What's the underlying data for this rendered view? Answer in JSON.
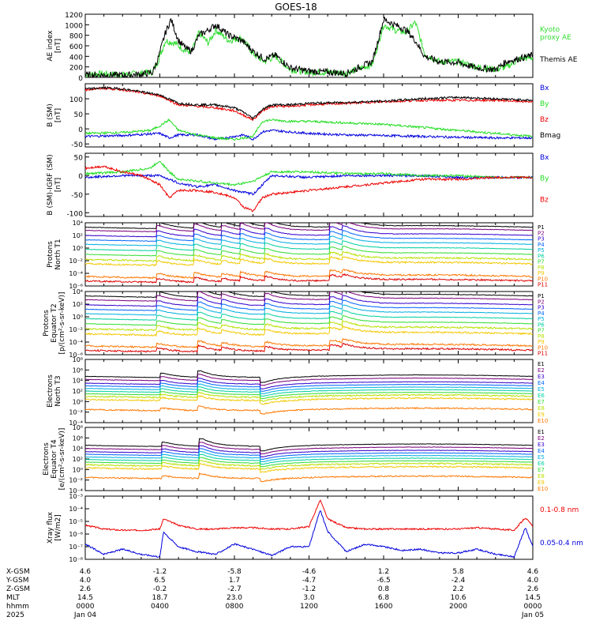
{
  "title": "GOES-18",
  "colors": {
    "black": "#000000",
    "red": "#ee0000",
    "green": "#22dd22",
    "blue": "#0000dd",
    "kyoto": "#33dd33",
    "channel_ramp": [
      "#000000",
      "#7a007a",
      "#3300cc",
      "#0066ff",
      "#00b0e0",
      "#00d0a0",
      "#33dd33",
      "#b8e000",
      "#f2c800",
      "#ff7700",
      "#dd0000"
    ]
  },
  "chart_data": [
    {
      "id": "ae",
      "type": "line",
      "ylabel": "AE index\n[nT]",
      "ylim": [
        0,
        1200
      ],
      "yticks": [
        0,
        200,
        400,
        600,
        800,
        1000,
        1200
      ],
      "series": [
        {
          "name": "Kyoto\nproxy AE",
          "color": "#33dd33",
          "x": [
            0,
            1.0,
            2.0,
            3.0,
            3.6,
            3.9,
            4.3,
            4.8,
            5.4,
            5.7,
            6.1,
            6.6,
            7.0,
            7.7,
            8.4,
            9.0,
            9.6,
            10.2,
            11.0,
            12.0,
            13.0,
            14.0,
            15.4,
            16.0,
            16.6,
            17.2,
            17.7,
            18.2,
            19.0,
            20.0,
            21.0,
            22.0,
            22.6,
            23.3,
            24.0
          ],
          "values": [
            60,
            70,
            50,
            80,
            100,
            300,
            700,
            650,
            500,
            480,
            850,
            650,
            900,
            700,
            750,
            450,
            300,
            400,
            150,
            100,
            100,
            80,
            250,
            1000,
            900,
            850,
            1050,
            450,
            300,
            300,
            200,
            150,
            200,
            350,
            380
          ]
        },
        {
          "name": "Themis AE",
          "color": "#000000",
          "x": [
            0,
            1.0,
            2.0,
            3.0,
            3.6,
            3.9,
            4.3,
            4.6,
            5.0,
            5.4,
            5.7,
            6.1,
            6.6,
            7.0,
            7.7,
            8.4,
            9.0,
            9.6,
            10.2,
            11.0,
            12.0,
            13.0,
            14.0,
            15.4,
            16.0,
            16.6,
            17.2,
            17.7,
            18.2,
            19.0,
            20.0,
            21.0,
            22.0,
            22.6,
            23.3,
            24.0
          ],
          "values": [
            40,
            50,
            40,
            60,
            90,
            350,
            850,
            1100,
            700,
            550,
            500,
            800,
            900,
            1000,
            800,
            700,
            500,
            350,
            420,
            180,
            120,
            100,
            80,
            300,
            1100,
            1000,
            900,
            700,
            400,
            300,
            280,
            180,
            150,
            300,
            360,
            420
          ]
        }
      ]
    },
    {
      "id": "bsm",
      "type": "line",
      "ylabel": "B (SM)\n[nT]",
      "ylim": [
        -60,
        150
      ],
      "yticks": [
        -50,
        0,
        50,
        100
      ],
      "series": [
        {
          "name": "Bx",
          "color": "#0000dd",
          "x": [
            0,
            2,
            4,
            4.5,
            5,
            6,
            7,
            8,
            8.5,
            9,
            9.5,
            10,
            11,
            12,
            14,
            16,
            18,
            20,
            22,
            24
          ],
          "values": [
            -25,
            -22,
            -15,
            -30,
            -20,
            -20,
            -35,
            -25,
            -20,
            -35,
            -10,
            -5,
            -10,
            -15,
            -20,
            -22,
            -25,
            -28,
            -30,
            -30
          ]
        },
        {
          "name": "By",
          "color": "#22dd22",
          "x": [
            0,
            2,
            3.5,
            4,
            4.5,
            5,
            6,
            7,
            8,
            9,
            9.5,
            10,
            11,
            12,
            14,
            16,
            18,
            20,
            22,
            24
          ],
          "values": [
            -15,
            -12,
            -5,
            10,
            30,
            -5,
            -20,
            -30,
            -35,
            -25,
            25,
            30,
            25,
            25,
            20,
            15,
            5,
            -5,
            -15,
            -25
          ]
        },
        {
          "name": "Bz",
          "color": "#ee0000",
          "x": [
            0,
            1,
            2,
            3,
            4,
            5,
            6,
            7,
            8,
            8.5,
            9,
            9.5,
            10,
            11,
            12,
            14,
            16,
            18,
            20,
            22,
            24
          ],
          "values": [
            130,
            135,
            130,
            120,
            110,
            80,
            75,
            70,
            60,
            45,
            30,
            60,
            75,
            75,
            80,
            85,
            90,
            95,
            95,
            95,
            90
          ]
        },
        {
          "name": "Bmag",
          "color": "#000000",
          "x": [
            0,
            1,
            2,
            3,
            4,
            5,
            6,
            7,
            8,
            8.5,
            9,
            9.5,
            10,
            11,
            12,
            14,
            16,
            18,
            20,
            22,
            24
          ],
          "values": [
            132,
            137,
            133,
            123,
            113,
            85,
            80,
            80,
            70,
            55,
            35,
            65,
            80,
            80,
            85,
            88,
            92,
            100,
            105,
            100,
            95
          ]
        }
      ]
    },
    {
      "id": "dbsm",
      "type": "line",
      "ylabel": "B (SM)-IGRF (SM)\n[nT]",
      "ylim": [
        -110,
        60
      ],
      "yticks": [
        -100,
        -50,
        0,
        50
      ],
      "series": [
        {
          "name": "Bx",
          "color": "#0000dd",
          "x": [
            0,
            2,
            4,
            5,
            6,
            7,
            8,
            9,
            10,
            12,
            14,
            16,
            18,
            20,
            22,
            24
          ],
          "values": [
            -5,
            0,
            0,
            -20,
            -30,
            -25,
            -40,
            -50,
            0,
            -5,
            0,
            0,
            0,
            -5,
            -5,
            -5
          ]
        },
        {
          "name": "By",
          "color": "#22dd22",
          "x": [
            0,
            2,
            3.5,
            4,
            4.5,
            5,
            6,
            7,
            8,
            9,
            10,
            12,
            14,
            16,
            18,
            20,
            22,
            24
          ],
          "values": [
            5,
            10,
            20,
            40,
            10,
            -10,
            -15,
            -20,
            -25,
            -15,
            10,
            10,
            5,
            5,
            0,
            0,
            -5,
            -5
          ]
        },
        {
          "name": "Bz",
          "color": "#ee0000",
          "x": [
            0,
            1,
            2,
            3,
            4,
            4.5,
            5,
            6,
            7,
            8,
            8.5,
            9,
            9.5,
            10,
            11,
            12,
            14,
            16,
            18,
            20,
            22,
            24
          ],
          "values": [
            20,
            25,
            10,
            0,
            -25,
            -60,
            -40,
            -40,
            -45,
            -60,
            -85,
            -95,
            -60,
            -50,
            -45,
            -40,
            -30,
            -20,
            -10,
            -10,
            -5,
            -5
          ]
        }
      ]
    },
    {
      "id": "p_north",
      "type": "line",
      "log": true,
      "ylabel": "Protons\nNorth T1",
      "ylim": [
        -6,
        4
      ],
      "ytick_exps": [
        -6,
        -4,
        -2,
        0,
        2,
        4
      ],
      "channels": [
        "P1",
        "P2",
        "P3",
        "P4",
        "P5",
        "P6",
        "P7",
        "P8",
        "P9",
        "P10",
        "P11"
      ],
      "levels": [
        3.3,
        2.8,
        2.0,
        1.3,
        0.6,
        -0.2,
        -1.0,
        -1.8,
        -2.5,
        -4.5,
        -5.2
      ],
      "event_x": [
        4.0,
        6.0,
        7.5,
        8.5,
        9.8,
        13.3,
        14.0
      ],
      "event_amp": [
        1.0,
        1.2,
        0.8,
        1.0,
        1.1,
        1.4,
        0.8
      ]
    },
    {
      "id": "p_equator",
      "type": "line",
      "log": true,
      "ylabel": "Protons\nEquator T2\n[p/(cm²-s-sr-keV)]",
      "ylim": [
        -6,
        4
      ],
      "ytick_exps": [
        -6,
        -4,
        -2,
        0,
        2,
        4
      ],
      "channels": [
        "P1",
        "P2",
        "P3",
        "P4",
        "P5",
        "P6",
        "P7",
        "P8",
        "P9",
        "P10",
        "P11"
      ],
      "levels": [
        3.3,
        2.7,
        1.9,
        1.2,
        0.5,
        -0.3,
        -1.1,
        -1.9,
        -2.7,
        -4.6,
        -5.3
      ],
      "event_x": [
        4.0,
        6.2,
        7.5,
        9.8,
        13.3,
        14.0
      ],
      "event_amp": [
        0.9,
        1.5,
        0.8,
        1.1,
        1.3,
        0.8
      ]
    },
    {
      "id": "e_north",
      "type": "line",
      "log": true,
      "ylabel": "Electrons\nNorth T3",
      "ylim": [
        -4,
        8
      ],
      "ytick_exps": [
        -4,
        -2,
        0,
        2,
        4,
        6,
        8
      ],
      "channels": [
        "E1",
        "E2",
        "E3",
        "E4",
        "E5",
        "E6",
        "E7",
        "E8",
        "E9",
        "E10"
      ],
      "levels": [
        4.8,
        4.2,
        3.5,
        3.0,
        2.5,
        2.0,
        1.5,
        1.0,
        0.4,
        -1.5
      ],
      "event_x": [
        4.2,
        6.2,
        9.6
      ],
      "event_amp": [
        0.8,
        1.2,
        -1.0
      ]
    },
    {
      "id": "e_equator",
      "type": "line",
      "log": true,
      "ylabel": "Electrons\nEquator T4\n[e/(cm²-s-sr-keV)]",
      "ylim": [
        -4,
        8
      ],
      "ytick_exps": [
        -4,
        -2,
        0,
        2,
        4,
        6,
        8
      ],
      "channels": [
        "E1",
        "E2",
        "E3",
        "E4",
        "E5",
        "E6",
        "E7",
        "E8",
        "E9",
        "E10"
      ],
      "levels": [
        4.6,
        4.0,
        3.4,
        2.9,
        2.4,
        1.9,
        1.4,
        0.9,
        0.3,
        -1.5
      ],
      "event_x": [
        4.3,
        6.3,
        9.6
      ],
      "event_amp": [
        0.8,
        1.4,
        -0.9
      ]
    },
    {
      "id": "xray",
      "type": "line",
      "log": true,
      "ylabel": "Xray flux\n[W/m2]",
      "ylim": [
        -8,
        -3
      ],
      "ytick_exps": [
        -8,
        -7,
        -6,
        -5,
        -4,
        -3
      ],
      "series": [
        {
          "name": "0.1-0.8 nm",
          "color": "#ee0000",
          "x": [
            0,
            1,
            2,
            3,
            4,
            4.2,
            4.5,
            5,
            6,
            7,
            8,
            9,
            10,
            11,
            12,
            12.6,
            13,
            14,
            15,
            16,
            17,
            18,
            19,
            20,
            21,
            22,
            23,
            23.6,
            24
          ],
          "values": [
            -5.3,
            -5.6,
            -5.7,
            -5.7,
            -5.6,
            -4.8,
            -5.0,
            -5.3,
            -5.6,
            -5.6,
            -5.5,
            -5.5,
            -5.6,
            -5.6,
            -5.4,
            -3.3,
            -4.8,
            -5.5,
            -5.6,
            -5.6,
            -5.6,
            -5.6,
            -5.6,
            -5.6,
            -5.5,
            -5.6,
            -5.7,
            -4.7,
            -5.4
          ]
        },
        {
          "name": "0.05-0.4 nm",
          "color": "#0000dd",
          "x": [
            0,
            1,
            2,
            3,
            4,
            4.2,
            4.5,
            5,
            6,
            7,
            8,
            9,
            10,
            11,
            12,
            12.6,
            13,
            14,
            15,
            16,
            17,
            18,
            19,
            20,
            21,
            22,
            23,
            23.6,
            24
          ],
          "values": [
            -6.8,
            -7.6,
            -7.2,
            -7.6,
            -7.8,
            -5.8,
            -6.3,
            -7.0,
            -7.4,
            -7.6,
            -6.8,
            -7.2,
            -7.7,
            -7.0,
            -7.0,
            -4.1,
            -5.8,
            -7.4,
            -6.8,
            -7.0,
            -7.3,
            -7.2,
            -7.5,
            -7.5,
            -7.2,
            -7.6,
            -7.8,
            -5.5,
            -7.0
          ]
        }
      ]
    }
  ],
  "footer": {
    "row_labels": [
      "X-GSM",
      "Y-GSM",
      "Z-GSM",
      "MLT",
      "hhmm",
      "2025"
    ],
    "columns": [
      [
        "4.6",
        "4.0",
        "2.6",
        "14.5",
        "0000",
        "Jan 04"
      ],
      [
        "-1.2",
        "6.5",
        "-0.2",
        "18.7",
        "0400",
        ""
      ],
      [
        "-5.8",
        "1.7",
        "-2.7",
        "23.0",
        "0800",
        ""
      ],
      [
        "-4.6",
        "-4.7",
        "-1.2",
        "3.0",
        "1200",
        ""
      ],
      [
        "1.2",
        "-6.5",
        "0.8",
        "6.8",
        "1600",
        ""
      ],
      [
        "5.8",
        "-2.4",
        "2.2",
        "10.6",
        "2000",
        ""
      ],
      [
        "4.6",
        "4.0",
        "2.6",
        "14.5",
        "0000",
        "Jan 05"
      ]
    ]
  }
}
